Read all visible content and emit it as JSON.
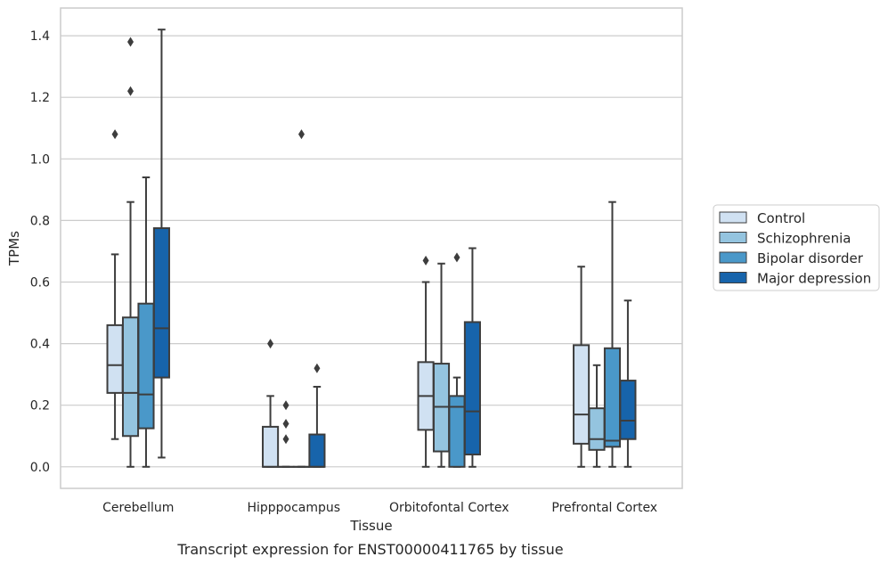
{
  "chart_data": {
    "type": "boxplot",
    "xlabel": "Tissue",
    "ylabel": "TPMs",
    "caption": "Transcript expression for ENST00000411765 by tissue",
    "ylim": [
      -0.07,
      1.49
    ],
    "yticks": [
      0.0,
      0.2,
      0.4,
      0.6,
      0.8,
      1.0,
      1.2,
      1.4
    ],
    "ytick_labels": [
      "0.0",
      "0.2",
      "0.4",
      "0.6",
      "0.8",
      "1.0",
      "1.2",
      "1.4"
    ],
    "grid": "horizontal",
    "legend_position": "right",
    "categories": [
      "Cerebellum",
      "Hipppocampus",
      "Orbitofontal Cortex",
      "Prefrontal Cortex"
    ],
    "series": [
      {
        "name": "Control",
        "color": "#d0e1f2",
        "boxes": [
          {
            "whislo": 0.09,
            "q1": 0.24,
            "med": 0.33,
            "q3": 0.46,
            "whishi": 0.69,
            "fliers": [
              1.08
            ]
          },
          {
            "whislo": 0.0,
            "q1": 0.0,
            "med": 0.0,
            "q3": 0.13,
            "whishi": 0.23,
            "fliers": [
              0.4
            ]
          },
          {
            "whislo": 0.0,
            "q1": 0.12,
            "med": 0.23,
            "q3": 0.34,
            "whishi": 0.6,
            "fliers": [
              0.67
            ]
          },
          {
            "whislo": 0.0,
            "q1": 0.075,
            "med": 0.17,
            "q3": 0.395,
            "whishi": 0.65,
            "fliers": []
          }
        ]
      },
      {
        "name": "Schizophrenia",
        "color": "#94c4df",
        "boxes": [
          {
            "whislo": 0.0,
            "q1": 0.1,
            "med": 0.24,
            "q3": 0.485,
            "whishi": 0.86,
            "fliers": [
              1.22,
              1.38
            ]
          },
          {
            "whislo": 0.0,
            "q1": 0.0,
            "med": 0.0,
            "q3": 0.0,
            "whishi": 0.0,
            "fliers": [
              0.09,
              0.14,
              0.2
            ]
          },
          {
            "whislo": 0.0,
            "q1": 0.05,
            "med": 0.195,
            "q3": 0.335,
            "whishi": 0.66,
            "fliers": []
          },
          {
            "whislo": 0.0,
            "q1": 0.055,
            "med": 0.09,
            "q3": 0.19,
            "whishi": 0.33,
            "fliers": []
          }
        ]
      },
      {
        "name": "Bipolar disorder",
        "color": "#4a98c9",
        "boxes": [
          {
            "whislo": 0.0,
            "q1": 0.125,
            "med": 0.235,
            "q3": 0.53,
            "whishi": 0.94,
            "fliers": []
          },
          {
            "whislo": 0.0,
            "q1": 0.0,
            "med": 0.0,
            "q3": 0.0,
            "whishi": 0.0,
            "fliers": [
              1.08
            ]
          },
          {
            "whislo": 0.0,
            "q1": 0.0,
            "med": 0.195,
            "q3": 0.23,
            "whishi": 0.29,
            "fliers": [
              0.68
            ]
          },
          {
            "whislo": 0.0,
            "q1": 0.065,
            "med": 0.085,
            "q3": 0.385,
            "whishi": 0.86,
            "fliers": []
          }
        ]
      },
      {
        "name": "Major depression",
        "color": "#1764ab",
        "boxes": [
          {
            "whislo": 0.03,
            "q1": 0.29,
            "med": 0.45,
            "q3": 0.775,
            "whishi": 1.42,
            "fliers": []
          },
          {
            "whislo": 0.0,
            "q1": 0.0,
            "med": 0.0,
            "q3": 0.105,
            "whishi": 0.26,
            "fliers": [
              0.32
            ]
          },
          {
            "whislo": 0.0,
            "q1": 0.04,
            "med": 0.18,
            "q3": 0.47,
            "whishi": 0.71,
            "fliers": []
          },
          {
            "whislo": 0.0,
            "q1": 0.09,
            "med": 0.15,
            "q3": 0.28,
            "whishi": 0.54,
            "fliers": []
          }
        ]
      }
    ]
  }
}
